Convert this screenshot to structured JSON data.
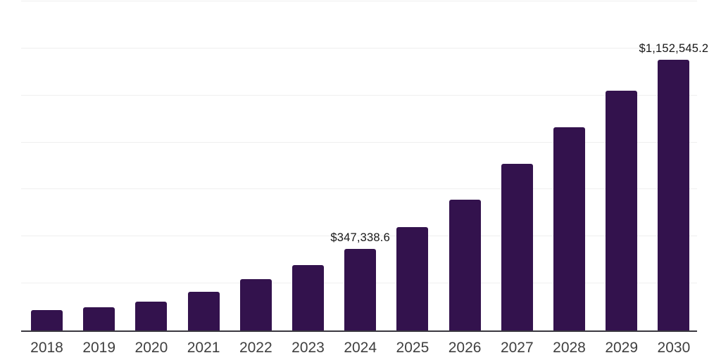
{
  "chart_data": {
    "type": "bar",
    "title": "",
    "xlabel": "",
    "ylabel": "",
    "categories": [
      "2018",
      "2019",
      "2020",
      "2021",
      "2022",
      "2023",
      "2024",
      "2025",
      "2026",
      "2027",
      "2028",
      "2029",
      "2030"
    ],
    "values": [
      87000,
      99000,
      123000,
      165000,
      219000,
      278000,
      347338.6,
      440000,
      557000,
      710000,
      865000,
      1021000,
      1152545.2
    ],
    "data_labels": [
      {
        "index": 6,
        "text": "$347,338.6"
      },
      {
        "index": 12,
        "text": "$1,152,545.2"
      }
    ],
    "ylim": [
      0,
      1400000
    ],
    "gridline_step": 200000,
    "grid": true,
    "legend": "none",
    "bar_color": "#33124d",
    "gridline_color": "#efefef",
    "axis_line_color": "#39373f",
    "tick_label_color": "#3f3f3f",
    "value_label_color": "#161616"
  }
}
